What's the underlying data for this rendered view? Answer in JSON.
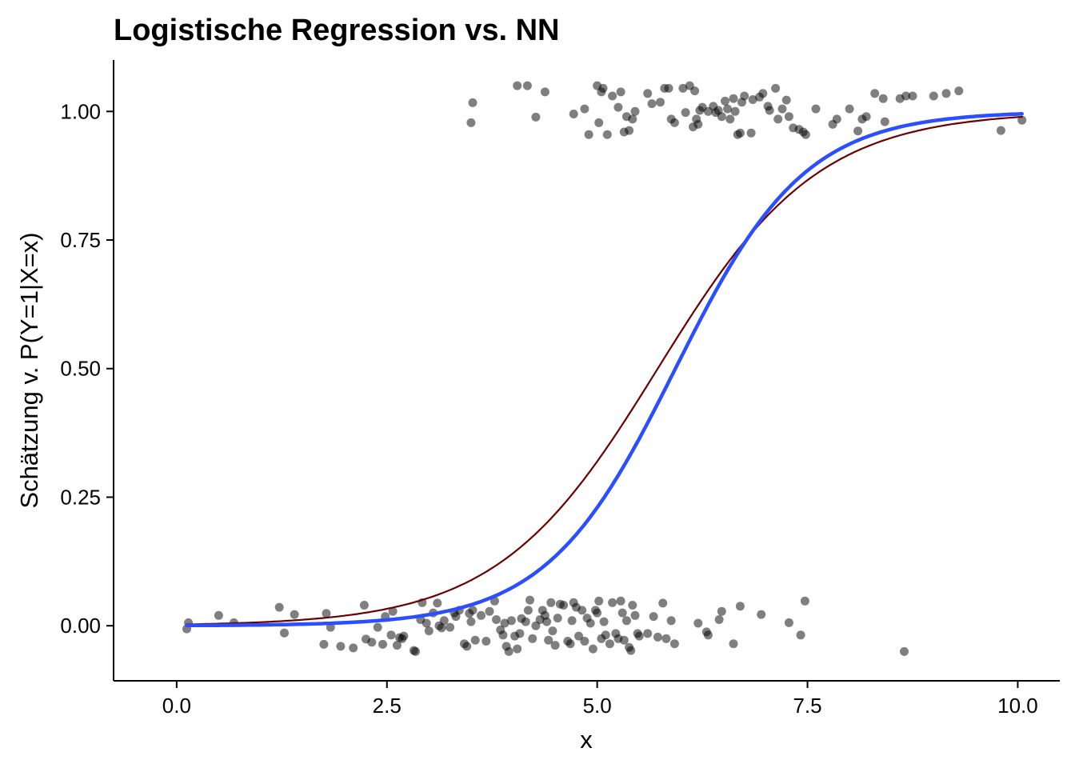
{
  "chart_data": {
    "type": "scatter",
    "title": "Logistische Regression vs. NN",
    "xlabel": "x",
    "ylabel": "Schätzung v. P(Y=1|X=x)",
    "xlim": [
      -0.75,
      10.5
    ],
    "ylim": [
      -0.107,
      1.1
    ],
    "x_ticks": [
      0.0,
      2.5,
      5.0,
      7.5,
      10.0
    ],
    "x_tick_labels": [
      "0.0",
      "2.5",
      "5.0",
      "7.5",
      "10.0"
    ],
    "y_ticks": [
      0.0,
      0.25,
      0.5,
      0.75,
      1.0
    ],
    "y_tick_labels": [
      "0.00",
      "0.25",
      "0.50",
      "0.75",
      "1.00"
    ],
    "grid": false,
    "point_color": "#000000",
    "point_opacity": 0.5,
    "curves": [
      {
        "type": "logistic",
        "x0": 5.72,
        "k": 1.05,
        "x_from": 0.12,
        "x_to": 10.05,
        "color": "#6B0000",
        "stroke": "thin"
      },
      {
        "type": "logistic",
        "x0": 5.93,
        "k": 1.3,
        "x_from": 0.12,
        "x_to": 10.05,
        "color": "#2B4EFF",
        "stroke": "thick"
      }
    ],
    "points": [
      [
        0.12,
        -0.006
      ],
      [
        0.14,
        0.006
      ],
      [
        0.5,
        0.02
      ],
      [
        0.68,
        0.006
      ],
      [
        1.22,
        0.036
      ],
      [
        1.28,
        -0.014
      ],
      [
        1.4,
        0.022
      ],
      [
        1.75,
        -0.036
      ],
      [
        1.78,
        0.024
      ],
      [
        1.83,
        -0.003
      ],
      [
        1.95,
        -0.04
      ],
      [
        2.1,
        -0.043
      ],
      [
        2.23,
        0.04
      ],
      [
        2.25,
        -0.026
      ],
      [
        2.32,
        -0.032
      ],
      [
        2.39,
        -0.003
      ],
      [
        2.45,
        -0.036
      ],
      [
        2.48,
        0.018
      ],
      [
        2.55,
        -0.018
      ],
      [
        2.57,
        0.028
      ],
      [
        2.62,
        -0.038
      ],
      [
        2.65,
        -0.023
      ],
      [
        2.68,
        -0.025
      ],
      [
        2.7,
        -0.02
      ],
      [
        2.82,
        -0.048
      ],
      [
        2.84,
        -0.05
      ],
      [
        2.9,
        0.012
      ],
      [
        2.92,
        0.045
      ],
      [
        2.97,
        0.005
      ],
      [
        3.0,
        -0.01
      ],
      [
        3.05,
        0.025
      ],
      [
        3.1,
        0.044
      ],
      [
        3.12,
        0.0
      ],
      [
        3.15,
        -0.004
      ],
      [
        3.18,
        0.01
      ],
      [
        3.25,
        -0.003
      ],
      [
        3.3,
        0.025
      ],
      [
        3.32,
        0.018
      ],
      [
        3.36,
        0.03
      ],
      [
        3.42,
        -0.035
      ],
      [
        3.45,
        -0.04
      ],
      [
        3.48,
        0.024
      ],
      [
        3.5,
        0.008
      ],
      [
        3.52,
        0.03
      ],
      [
        3.55,
        -0.028
      ],
      [
        3.62,
        0.02
      ],
      [
        3.68,
        -0.03
      ],
      [
        3.72,
        0.028
      ],
      [
        3.78,
        0.048
      ],
      [
        3.8,
        0.012
      ],
      [
        3.85,
        -0.008
      ],
      [
        3.88,
        -0.018
      ],
      [
        3.9,
        0.005
      ],
      [
        3.92,
        -0.04
      ],
      [
        3.95,
        -0.05
      ],
      [
        3.98,
        0.01
      ],
      [
        4.02,
        -0.02
      ],
      [
        4.05,
        -0.045
      ],
      [
        4.08,
        -0.015
      ],
      [
        4.1,
        0.014
      ],
      [
        4.15,
        0.008
      ],
      [
        4.18,
        0.03
      ],
      [
        4.2,
        0.05
      ],
      [
        4.23,
        -0.025
      ],
      [
        4.27,
        0.0
      ],
      [
        4.32,
        0.012
      ],
      [
        4.35,
        0.03
      ],
      [
        4.38,
        0.02
      ],
      [
        4.4,
        0.008
      ],
      [
        4.42,
        -0.028
      ],
      [
        4.45,
        0.045
      ],
      [
        4.47,
        -0.01
      ],
      [
        4.5,
        -0.038
      ],
      [
        4.53,
        0.015
      ],
      [
        4.56,
        0.042
      ],
      [
        4.6,
        0.04
      ],
      [
        4.65,
        -0.03
      ],
      [
        4.68,
        -0.035
      ],
      [
        4.7,
        0.01
      ],
      [
        4.72,
        0.045
      ],
      [
        4.75,
        0.036
      ],
      [
        4.78,
        -0.02
      ],
      [
        4.82,
        0.03
      ],
      [
        4.85,
        -0.03
      ],
      [
        4.88,
        0.015
      ],
      [
        4.92,
        0.005
      ],
      [
        4.95,
        -0.045
      ],
      [
        4.98,
        0.03
      ],
      [
        5.0,
        0.025
      ],
      [
        5.02,
        0.048
      ],
      [
        5.05,
        -0.025
      ],
      [
        5.08,
        0.008
      ],
      [
        5.1,
        -0.018
      ],
      [
        5.15,
        -0.035
      ],
      [
        5.18,
        0.045
      ],
      [
        5.22,
        -0.015
      ],
      [
        5.25,
        -0.025
      ],
      [
        5.28,
        0.048
      ],
      [
        5.3,
        0.025
      ],
      [
        5.32,
        -0.028
      ],
      [
        5.35,
        0.01
      ],
      [
        5.38,
        -0.042
      ],
      [
        5.4,
        -0.048
      ],
      [
        5.42,
        0.04
      ],
      [
        5.45,
        0.02
      ],
      [
        5.48,
        -0.015
      ],
      [
        5.5,
        -0.02
      ],
      [
        5.6,
        -0.015
      ],
      [
        5.67,
        0.018
      ],
      [
        5.72,
        -0.022
      ],
      [
        5.78,
        0.044
      ],
      [
        5.82,
        -0.025
      ],
      [
        5.88,
        0.01
      ],
      [
        5.92,
        -0.035
      ],
      [
        6.2,
        0.005
      ],
      [
        6.3,
        -0.012
      ],
      [
        6.32,
        -0.018
      ],
      [
        6.45,
        0.012
      ],
      [
        6.48,
        0.028
      ],
      [
        6.62,
        -0.035
      ],
      [
        6.7,
        0.038
      ],
      [
        6.95,
        0.022
      ],
      [
        7.28,
        0.006
      ],
      [
        7.42,
        -0.018
      ],
      [
        7.47,
        0.048
      ],
      [
        8.65,
        -0.05
      ],
      [
        3.5,
        0.978
      ],
      [
        3.52,
        1.017
      ],
      [
        4.05,
        1.05
      ],
      [
        4.17,
        1.05
      ],
      [
        4.27,
        0.989
      ],
      [
        4.38,
        1.038
      ],
      [
        4.72,
        0.995
      ],
      [
        4.85,
        1.005
      ],
      [
        4.9,
        0.955
      ],
      [
        5.0,
        1.05
      ],
      [
        5.02,
        0.978
      ],
      [
        5.05,
        1.038
      ],
      [
        5.07,
        1.045
      ],
      [
        5.12,
        0.955
      ],
      [
        5.18,
        1.03
      ],
      [
        5.25,
        1.008
      ],
      [
        5.28,
        1.038
      ],
      [
        5.32,
        0.96
      ],
      [
        5.35,
        0.99
      ],
      [
        5.38,
        0.963
      ],
      [
        5.42,
        0.985
      ],
      [
        5.45,
        1.0
      ],
      [
        5.6,
        1.035
      ],
      [
        5.65,
        1.015
      ],
      [
        5.75,
        1.018
      ],
      [
        5.8,
        1.045
      ],
      [
        5.85,
        1.045
      ],
      [
        5.88,
        0.985
      ],
      [
        5.92,
        0.978
      ],
      [
        6.02,
        1.045
      ],
      [
        6.05,
        0.998
      ],
      [
        6.1,
        1.05
      ],
      [
        6.14,
        0.97
      ],
      [
        6.16,
        1.04
      ],
      [
        6.18,
        0.985
      ],
      [
        6.2,
        0.975
      ],
      [
        6.22,
        1.002
      ],
      [
        6.25,
        1.008
      ],
      [
        6.32,
        1.0
      ],
      [
        6.38,
        1.01
      ],
      [
        6.41,
        0.998
      ],
      [
        6.44,
        1.002
      ],
      [
        6.48,
        0.99
      ],
      [
        6.52,
        1.02
      ],
      [
        6.55,
        1.005
      ],
      [
        6.58,
        0.985
      ],
      [
        6.62,
        1.025
      ],
      [
        6.64,
        1.0
      ],
      [
        6.67,
        0.955
      ],
      [
        6.7,
        0.958
      ],
      [
        6.72,
        1.018
      ],
      [
        6.75,
        1.03
      ],
      [
        6.83,
        0.958
      ],
      [
        6.85,
        1.023
      ],
      [
        6.93,
        1.028
      ],
      [
        6.97,
        1.035
      ],
      [
        7.03,
        1.01
      ],
      [
        7.05,
        1.002
      ],
      [
        7.12,
        1.045
      ],
      [
        7.15,
        0.985
      ],
      [
        7.2,
        1.005
      ],
      [
        7.25,
        1.022
      ],
      [
        7.28,
        0.99
      ],
      [
        7.33,
        0.968
      ],
      [
        7.4,
        0.965
      ],
      [
        7.45,
        0.96
      ],
      [
        7.48,
        0.955
      ],
      [
        7.6,
        1.005
      ],
      [
        7.8,
        0.975
      ],
      [
        7.85,
        0.985
      ],
      [
        8.0,
        1.005
      ],
      [
        8.1,
        0.962
      ],
      [
        8.15,
        0.985
      ],
      [
        8.2,
        0.99
      ],
      [
        8.3,
        1.035
      ],
      [
        8.4,
        1.025
      ],
      [
        8.42,
        0.98
      ],
      [
        8.6,
        1.025
      ],
      [
        8.67,
        1.03
      ],
      [
        8.75,
        1.03
      ],
      [
        9.0,
        1.03
      ],
      [
        9.15,
        1.035
      ],
      [
        9.3,
        1.04
      ],
      [
        9.8,
        0.963
      ],
      [
        10.05,
        0.983
      ]
    ]
  }
}
